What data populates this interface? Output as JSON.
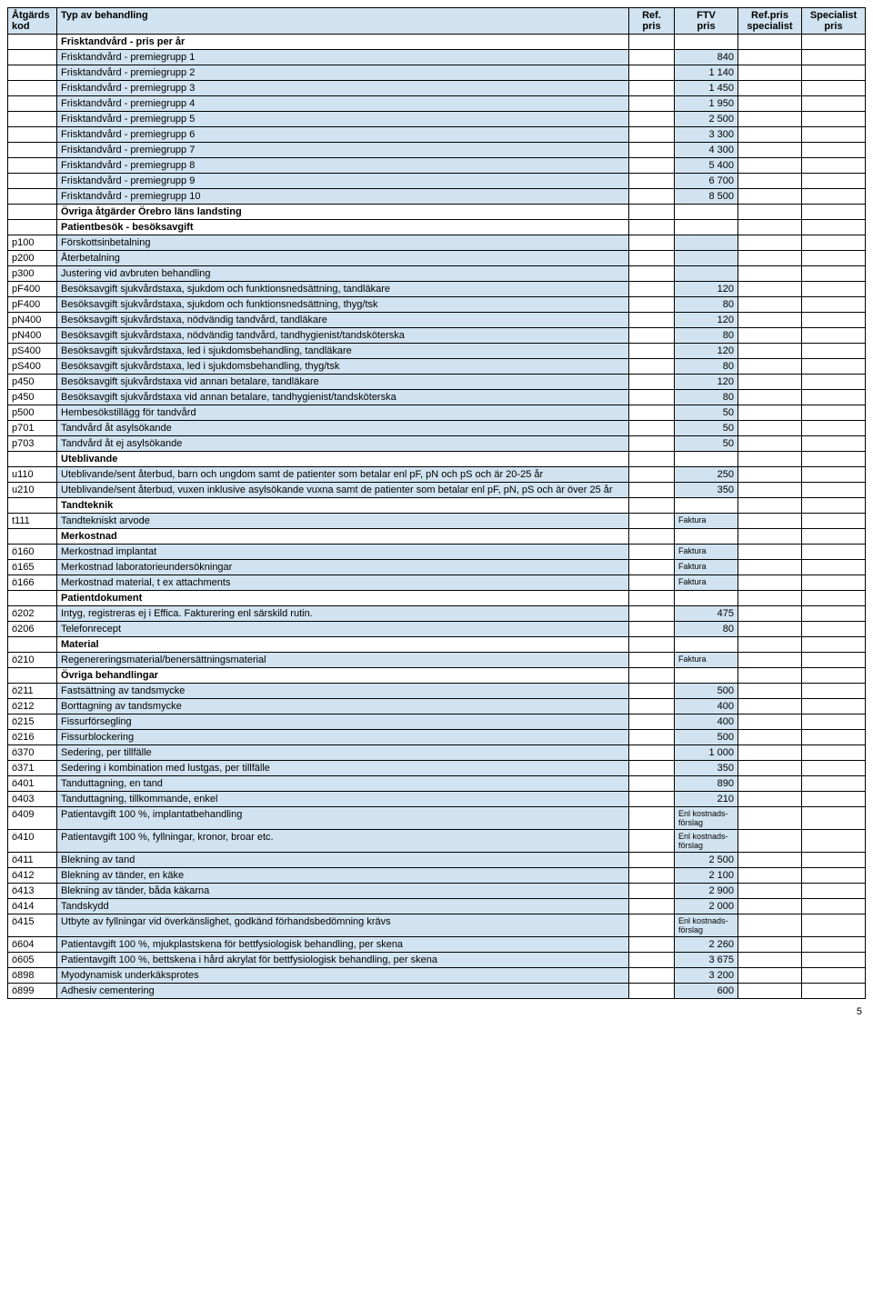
{
  "header": {
    "col1_line1": "Åtgärds",
    "col1_line2": "kod",
    "col2": "Typ av behandling",
    "col3_line1": "Ref.",
    "col3_line2": "pris",
    "col4_line1": "FTV",
    "col4_line2": "pris",
    "col5_line1": "Ref.pris",
    "col5_line2": "specialist",
    "col6_line1": "Specialist",
    "col6_line2": "pris"
  },
  "rows": [
    {
      "type": "section",
      "desc": "Frisktandvård - pris per år"
    },
    {
      "type": "data",
      "code": "",
      "desc": "Frisktandvård - premiegrupp 1",
      "ftv": "840"
    },
    {
      "type": "data",
      "code": "",
      "desc": "Frisktandvård - premiegrupp 2",
      "ftv": "1 140"
    },
    {
      "type": "data",
      "code": "",
      "desc": "Frisktandvård - premiegrupp 3",
      "ftv": "1 450"
    },
    {
      "type": "data",
      "code": "",
      "desc": "Frisktandvård - premiegrupp 4",
      "ftv": "1 950"
    },
    {
      "type": "data",
      "code": "",
      "desc": "Frisktandvård - premiegrupp 5",
      "ftv": "2 500"
    },
    {
      "type": "data",
      "code": "",
      "desc": "Frisktandvård - premiegrupp 6",
      "ftv": "3 300"
    },
    {
      "type": "data",
      "code": "",
      "desc": "Frisktandvård - premiegrupp 7",
      "ftv": "4 300"
    },
    {
      "type": "data",
      "code": "",
      "desc": "Frisktandvård - premiegrupp 8",
      "ftv": "5 400"
    },
    {
      "type": "data",
      "code": "",
      "desc": "Frisktandvård - premiegrupp 9",
      "ftv": "6 700"
    },
    {
      "type": "data",
      "code": "",
      "desc": "Frisktandvård - premiegrupp 10",
      "ftv": "8 500"
    },
    {
      "type": "section",
      "desc": "Övriga åtgärder Örebro läns landsting"
    },
    {
      "type": "section",
      "desc": "Patientbesök - besöksavgift"
    },
    {
      "type": "data",
      "code": "p100",
      "desc": "Förskottsinbetalning",
      "ftv": ""
    },
    {
      "type": "data",
      "code": "p200",
      "desc": "Återbetalning",
      "ftv": ""
    },
    {
      "type": "data",
      "code": "p300",
      "desc": "Justering vid avbruten behandling",
      "ftv": ""
    },
    {
      "type": "data",
      "code": "pF400",
      "desc": "Besöksavgift sjukvårdstaxa, sjukdom och funktionsnedsättning, tandläkare",
      "ftv": "120"
    },
    {
      "type": "data",
      "code": "pF400",
      "desc": "Besöksavgift sjukvårdstaxa, sjukdom och funktionsnedsättning, thyg/tsk",
      "ftv": "80"
    },
    {
      "type": "data",
      "code": "pN400",
      "desc": "Besöksavgift sjukvårdstaxa, nödvändig tandvård, tandläkare",
      "ftv": "120"
    },
    {
      "type": "data",
      "code": "pN400",
      "desc": "Besöksavgift sjukvårdstaxa, nödvändig tandvård, tandhygienist/tandsköterska",
      "ftv": "80"
    },
    {
      "type": "data",
      "code": "pS400",
      "desc": "Besöksavgift sjukvårdstaxa, led i sjukdomsbehandling, tandläkare",
      "ftv": "120"
    },
    {
      "type": "data",
      "code": "pS400",
      "desc": "Besöksavgift sjukvårdstaxa, led i sjukdomsbehandling, thyg/tsk",
      "ftv": "80"
    },
    {
      "type": "data",
      "code": "p450",
      "desc": "Besöksavgift sjukvårdstaxa vid annan betalare, tandläkare",
      "ftv": "120"
    },
    {
      "type": "data",
      "code": "p450",
      "desc": "Besöksavgift sjukvårdstaxa vid annan betalare, tandhygienist/tandsköterska",
      "ftv": "80"
    },
    {
      "type": "data",
      "code": "p500",
      "desc": "Hembesökstillägg för tandvård",
      "ftv": "50"
    },
    {
      "type": "data",
      "code": "p701",
      "desc": "Tandvård åt asylsökande",
      "ftv": "50"
    },
    {
      "type": "data",
      "code": "p703",
      "desc": "Tandvård åt ej asylsökande",
      "ftv": "50"
    },
    {
      "type": "section",
      "desc": "Uteblivande"
    },
    {
      "type": "data",
      "code": "u110",
      "desc": "Uteblivande/sent återbud, barn och ungdom samt de patienter som betalar enl pF, pN och pS och är 20-25 år",
      "ftv": "250"
    },
    {
      "type": "data",
      "code": "u210",
      "desc": "Uteblivande/sent återbud, vuxen inklusive asylsökande vuxna samt de patienter som betalar enl pF, pN, pS och är över 25 år",
      "ftv": "350"
    },
    {
      "type": "section",
      "desc": "Tandteknik"
    },
    {
      "type": "data",
      "code": "t111",
      "desc": "Tandtekniskt arvode",
      "ftv": "Faktura"
    },
    {
      "type": "section",
      "desc": "Merkostnad"
    },
    {
      "type": "data",
      "code": "ö160",
      "desc": "Merkostnad implantat",
      "ftv": "Faktura"
    },
    {
      "type": "data",
      "code": "ö165",
      "desc": "Merkostnad laboratorieundersökningar",
      "ftv": "Faktura"
    },
    {
      "type": "data",
      "code": "ö166",
      "desc": "Merkostnad material, t ex attachments",
      "ftv": "Faktura"
    },
    {
      "type": "section",
      "desc": "Patientdokument"
    },
    {
      "type": "data",
      "code": "ö202",
      "desc": "Intyg, registreras ej i Effica. Fakturering enl särskild rutin.",
      "ftv": "475"
    },
    {
      "type": "data",
      "code": "ö206",
      "desc": "Telefonrecept",
      "ftv": "80"
    },
    {
      "type": "section",
      "desc": "Material"
    },
    {
      "type": "data",
      "code": "ö210",
      "desc": "Regenereringsmaterial/benersättningsmaterial",
      "ftv": "Faktura"
    },
    {
      "type": "section",
      "desc": "Övriga behandlingar"
    },
    {
      "type": "data",
      "code": "ö211",
      "desc": "Fastsättning av tandsmycke",
      "ftv": "500"
    },
    {
      "type": "data",
      "code": "ö212",
      "desc": "Borttagning av tandsmycke",
      "ftv": "400"
    },
    {
      "type": "data",
      "code": "ö215",
      "desc": "Fissurförsegling",
      "ftv": "400"
    },
    {
      "type": "data",
      "code": "ö216",
      "desc": "Fissurblockering",
      "ftv": "500"
    },
    {
      "type": "data",
      "code": "ö370",
      "desc": "Sedering, per tillfälle",
      "ftv": "1 000"
    },
    {
      "type": "data",
      "code": "ö371",
      "desc": "Sedering i kombination med lustgas, per tillfälle",
      "ftv": "350"
    },
    {
      "type": "data",
      "code": "ö401",
      "desc": "Tanduttagning, en tand",
      "ftv": "890"
    },
    {
      "type": "data",
      "code": "ö403",
      "desc": "Tanduttagning, tillkommande, enkel",
      "ftv": "210"
    },
    {
      "type": "data",
      "code": "ö409",
      "desc": "Patientavgift 100 %, implantatbehandling",
      "ftv": "Enl kostnads-förslag"
    },
    {
      "type": "data",
      "code": "ö410",
      "desc": "Patientavgift 100 %, fyllningar, kronor, broar etc.",
      "ftv": "Enl kostnads-förslag"
    },
    {
      "type": "data",
      "code": "ö411",
      "desc": "Blekning av tand",
      "ftv": "2 500"
    },
    {
      "type": "data",
      "code": "ö412",
      "desc": "Blekning av tänder, en käke",
      "ftv": "2 100"
    },
    {
      "type": "data",
      "code": "ö413",
      "desc": "Blekning av tänder, båda käkarna",
      "ftv": "2 900"
    },
    {
      "type": "data",
      "code": "ö414",
      "desc": "Tandskydd",
      "ftv": "2 000"
    },
    {
      "type": "data",
      "code": "ö415",
      "desc": "Utbyte av fyllningar vid överkänslighet, godkänd förhandsbedömning krävs",
      "ftv": "Enl kostnads-förslag"
    },
    {
      "type": "data",
      "code": "ö604",
      "desc": "Patientavgift 100 %, mjukplastskena för bettfysiologisk behandling, per skena",
      "ftv": "2 260"
    },
    {
      "type": "data",
      "code": "ö605",
      "desc": "Patientavgift 100 %, bettskena i hård akrylat för bettfysiologisk behandling, per skena",
      "ftv": "3 675"
    },
    {
      "type": "data",
      "code": "ö898",
      "desc": "Myodynamisk underkäksprotes",
      "ftv": "3 200"
    },
    {
      "type": "data",
      "code": "ö899",
      "desc": "Adhesiv cementering",
      "ftv": "600"
    }
  ],
  "page_number": "5"
}
